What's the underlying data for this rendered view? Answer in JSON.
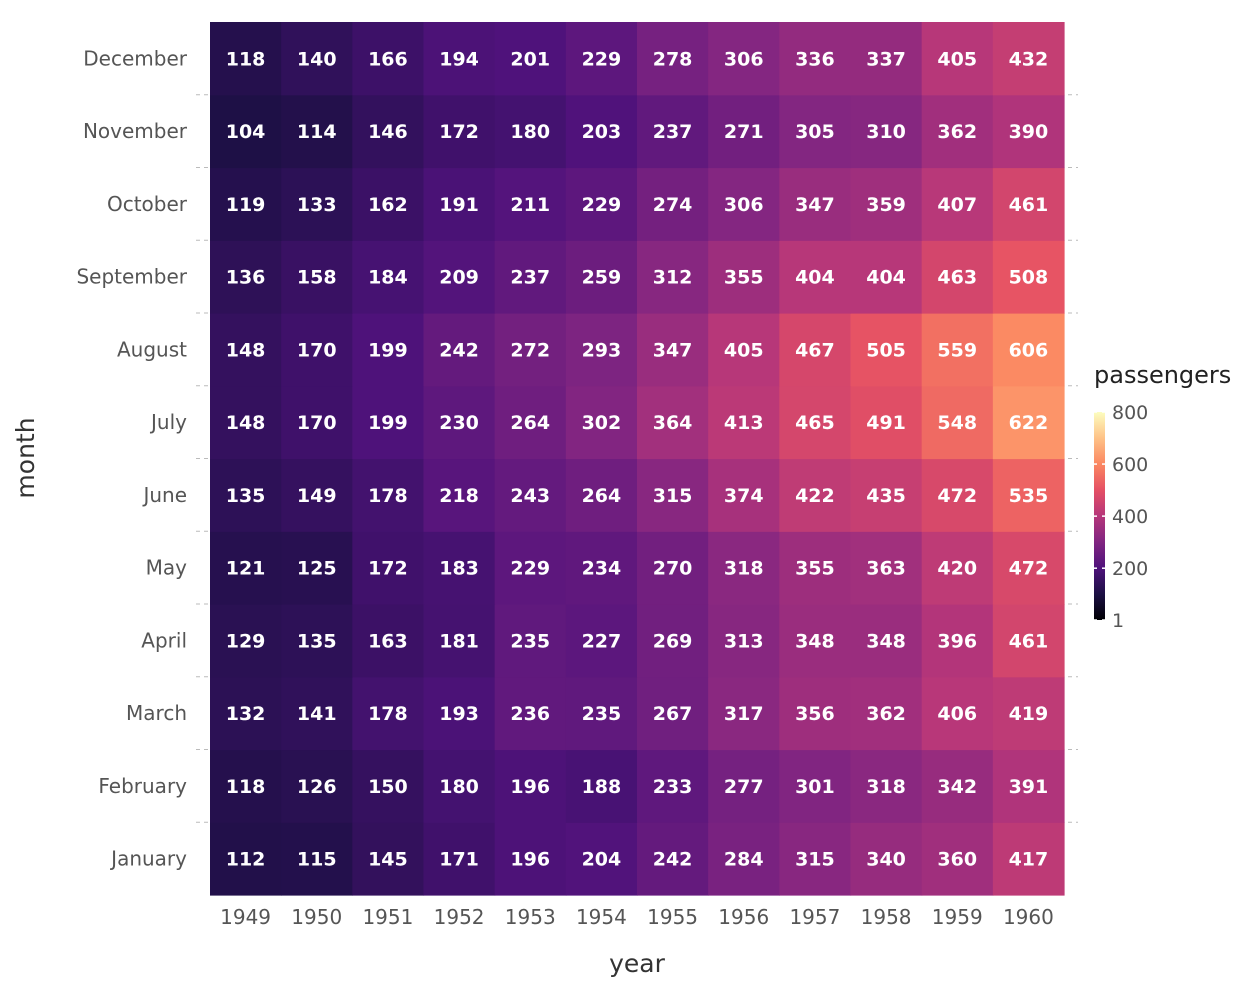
{
  "chart_data": {
    "type": "heatmap",
    "xlabel": "year",
    "ylabel": "month",
    "x": [
      "1949",
      "1950",
      "1951",
      "1952",
      "1953",
      "1954",
      "1955",
      "1956",
      "1957",
      "1958",
      "1959",
      "1960"
    ],
    "y": [
      "January",
      "February",
      "March",
      "April",
      "May",
      "June",
      "July",
      "August",
      "September",
      "October",
      "November",
      "December"
    ],
    "values": [
      [
        112,
        115,
        145,
        171,
        196,
        204,
        242,
        284,
        315,
        340,
        360,
        417
      ],
      [
        118,
        126,
        150,
        180,
        196,
        188,
        233,
        277,
        301,
        318,
        342,
        391
      ],
      [
        132,
        141,
        178,
        193,
        236,
        235,
        267,
        317,
        356,
        362,
        406,
        419
      ],
      [
        129,
        135,
        163,
        181,
        235,
        227,
        269,
        313,
        348,
        348,
        396,
        461
      ],
      [
        121,
        125,
        172,
        183,
        229,
        234,
        270,
        318,
        355,
        363,
        420,
        472
      ],
      [
        135,
        149,
        178,
        218,
        243,
        264,
        315,
        374,
        422,
        435,
        472,
        535
      ],
      [
        148,
        170,
        199,
        230,
        264,
        302,
        364,
        413,
        465,
        491,
        548,
        622
      ],
      [
        148,
        170,
        199,
        242,
        272,
        293,
        347,
        405,
        467,
        505,
        559,
        606
      ],
      [
        136,
        158,
        184,
        209,
        237,
        259,
        312,
        355,
        404,
        404,
        463,
        508
      ],
      [
        119,
        133,
        162,
        191,
        211,
        229,
        274,
        306,
        347,
        359,
        407,
        461
      ],
      [
        104,
        114,
        146,
        172,
        180,
        203,
        237,
        271,
        305,
        310,
        362,
        390
      ],
      [
        118,
        140,
        166,
        194,
        201,
        229,
        278,
        306,
        336,
        337,
        405,
        432
      ]
    ],
    "legend": {
      "title": "passengers",
      "ticks": [
        1,
        200,
        400,
        600,
        800
      ],
      "range": [
        1,
        800
      ],
      "colormap": "magma"
    },
    "grid": true
  }
}
